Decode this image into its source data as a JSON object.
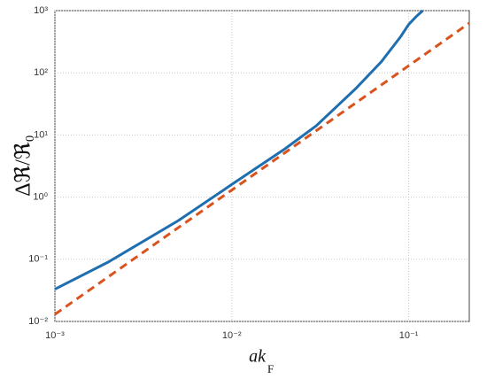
{
  "chart_data": {
    "type": "line",
    "y_label": "Δℜ/ℜ₀",
    "x_label": "ak",
    "x_label_subscript": "F",
    "log_x": true,
    "log_y": true,
    "grid": true,
    "xlim": [
      0.001,
      0.22
    ],
    "ylim": [
      0.01,
      1000
    ],
    "xticks": [
      {
        "value": 0.001,
        "label": "10⁻³"
      },
      {
        "value": 0.01,
        "label": "10⁻²"
      },
      {
        "value": 0.1,
        "label": "10⁻¹"
      }
    ],
    "yticks": [
      {
        "value": 0.01,
        "label": "10⁻²"
      },
      {
        "value": 0.1,
        "label": "10⁻¹"
      },
      {
        "value": 1,
        "label": "10⁰"
      },
      {
        "value": 10,
        "label": "10¹"
      },
      {
        "value": 100,
        "label": "10²"
      },
      {
        "value": 1000,
        "label": "10³"
      }
    ],
    "series": [
      {
        "color": "#1f6fb0",
        "style": "solid",
        "x": [
          0.001,
          0.002,
          0.005,
          0.01,
          0.02,
          0.03,
          0.05,
          0.07,
          0.09,
          0.1,
          0.11,
          0.12
        ],
        "values": [
          0.033,
          0.09,
          0.42,
          1.6,
          6,
          14,
          55,
          150,
          380,
          600,
          800,
          1000
        ]
      },
      {
        "color": "#d9531e",
        "style": "dashed",
        "x": [
          0.001,
          0.01,
          0.1,
          0.22
        ],
        "values": [
          0.013,
          1.3,
          130,
          629
        ]
      }
    ]
  }
}
